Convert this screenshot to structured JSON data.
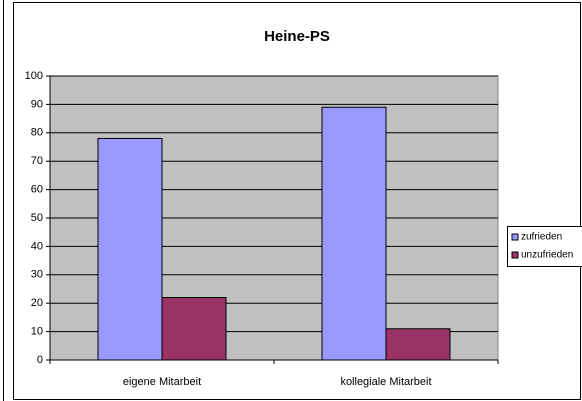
{
  "chart_data": {
    "type": "bar",
    "title": "Heine-PS",
    "categories": [
      "eigene Mitarbeit",
      "kollegiale Mitarbeit"
    ],
    "series": [
      {
        "name": "zufrieden",
        "color": "#9999ff",
        "values": [
          78,
          89
        ]
      },
      {
        "name": "unzufrieden",
        "color": "#993366",
        "values": [
          22,
          11
        ]
      }
    ],
    "ylim": [
      0,
      100
    ],
    "yticks": [
      0,
      10,
      20,
      30,
      40,
      50,
      60,
      70,
      80,
      90,
      100
    ],
    "grid": true,
    "legend": "right"
  }
}
